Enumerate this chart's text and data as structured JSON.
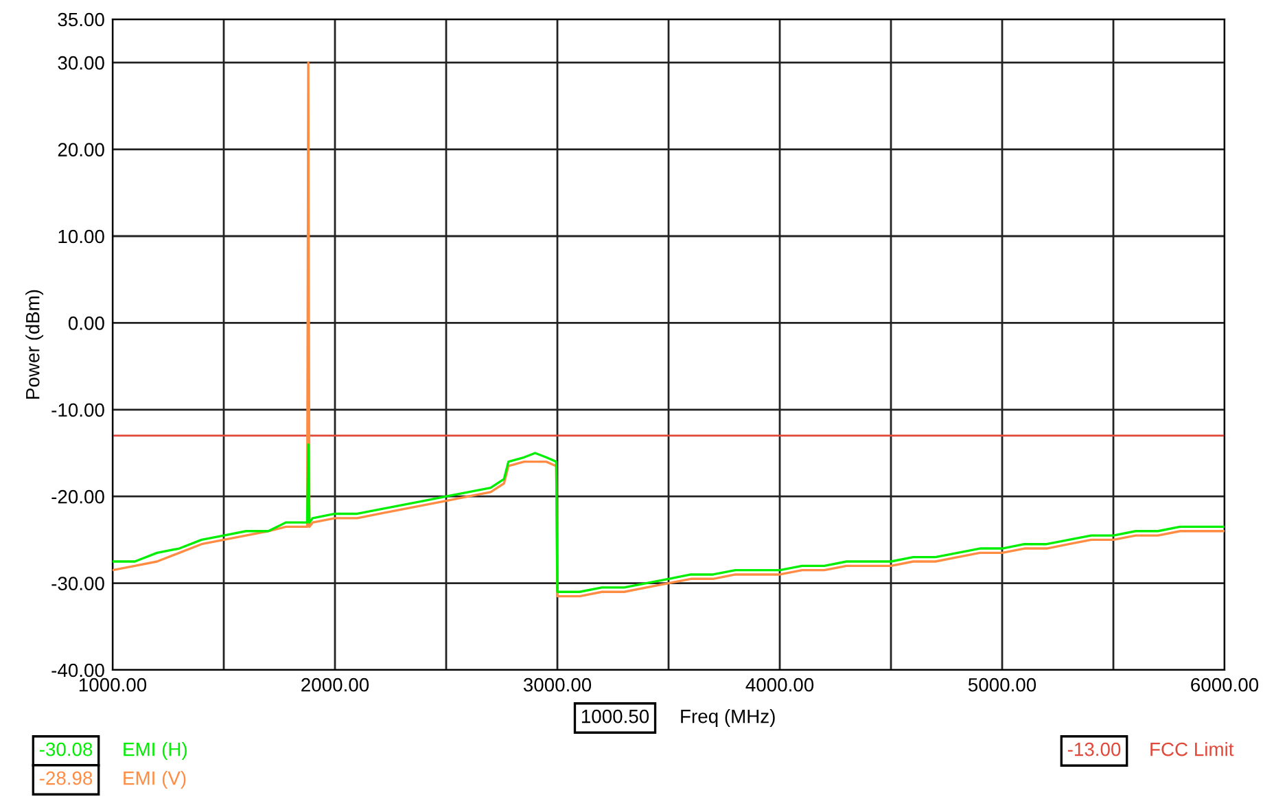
{
  "chart_data": {
    "type": "line",
    "xlabel": "Freq (MHz)",
    "ylabel": "Power (dBm)",
    "xlim": [
      1000,
      6000
    ],
    "ylim": [
      -40,
      35
    ],
    "xticks": [
      {
        "value": 1000,
        "label": "1000.00"
      },
      {
        "value": 1500,
        "label": null
      },
      {
        "value": 2000,
        "label": "2000.00"
      },
      {
        "value": 2500,
        "label": null
      },
      {
        "value": 3000,
        "label": "3000.00"
      },
      {
        "value": 3500,
        "label": null
      },
      {
        "value": 4000,
        "label": "4000.00"
      },
      {
        "value": 4500,
        "label": null
      },
      {
        "value": 5000,
        "label": "5000.00"
      },
      {
        "value": 5500,
        "label": null
      },
      {
        "value": 6000,
        "label": "6000.00"
      }
    ],
    "yticks": [
      {
        "value": -40,
        "label": "-40.00"
      },
      {
        "value": -30,
        "label": "-30.00"
      },
      {
        "value": -20,
        "label": "-20.00"
      },
      {
        "value": -10,
        "label": "-10.00"
      },
      {
        "value": 0,
        "label": "0.00"
      },
      {
        "value": 10,
        "label": "10.00"
      },
      {
        "value": 20,
        "label": "20.00"
      },
      {
        "value": 30,
        "label": "30.00"
      },
      {
        "value": 35,
        "label": "35.00"
      }
    ],
    "grid": true,
    "legend": "bottom left",
    "marker": "none",
    "line_style": "solid",
    "series": [
      {
        "name": "EMI (H)",
        "color": "#00ee00",
        "x": [
          1000,
          1100,
          1200,
          1300,
          1400,
          1500,
          1600,
          1700,
          1780,
          1860,
          1875,
          1880,
          1885,
          1900,
          2000,
          2100,
          2200,
          2300,
          2400,
          2500,
          2600,
          2700,
          2760,
          2780,
          2850,
          2900,
          2950,
          2995,
          3000,
          3100,
          3200,
          3300,
          3400,
          3500,
          3600,
          3700,
          3800,
          3900,
          4000,
          4100,
          4200,
          4300,
          4400,
          4500,
          4600,
          4700,
          4800,
          4900,
          5000,
          5100,
          5200,
          5300,
          5400,
          5500,
          5600,
          5700,
          5800,
          5900,
          6000
        ],
        "values": [
          -27.5,
          -27.5,
          -26.5,
          -26,
          -25,
          -24.5,
          -24,
          -24,
          -23,
          -23,
          -23,
          -14,
          -23,
          -22.5,
          -22,
          -22,
          -21.5,
          -21,
          -20.5,
          -20,
          -19.5,
          -19,
          -18,
          -16,
          -15.5,
          -15,
          -15.5,
          -16,
          -31,
          -31,
          -30.5,
          -30.5,
          -30,
          -29.5,
          -29,
          -29,
          -28.5,
          -28.5,
          -28.5,
          -28,
          -28,
          -27.5,
          -27.5,
          -27.5,
          -27,
          -27,
          -26.5,
          -26,
          -26,
          -25.5,
          -25.5,
          -25,
          -24.5,
          -24.5,
          -24,
          -24,
          -23.5,
          -23.5,
          -23.5
        ]
      },
      {
        "name": "EMI (V)",
        "color": "#ff8c42",
        "x": [
          1000,
          1100,
          1200,
          1300,
          1400,
          1500,
          1600,
          1700,
          1780,
          1860,
          1875,
          1880,
          1885,
          1900,
          2000,
          2100,
          2200,
          2300,
          2400,
          2500,
          2600,
          2700,
          2760,
          2780,
          2850,
          2900,
          2950,
          2995,
          3000,
          3100,
          3200,
          3300,
          3400,
          3500,
          3600,
          3700,
          3800,
          3900,
          4000,
          4100,
          4200,
          4300,
          4400,
          4500,
          4600,
          4700,
          4800,
          4900,
          5000,
          5100,
          5200,
          5300,
          5400,
          5500,
          5600,
          5700,
          5800,
          5900,
          6000
        ],
        "values": [
          -28.5,
          -28,
          -27.5,
          -26.5,
          -25.5,
          -25,
          -24.5,
          -24,
          -23.5,
          -23.5,
          -23.5,
          30,
          -23.5,
          -23,
          -22.5,
          -22.5,
          -22,
          -21.5,
          -21,
          -20.5,
          -20,
          -19.5,
          -18.5,
          -16.5,
          -16,
          -16,
          -16,
          -16.5,
          -31.5,
          -31.5,
          -31,
          -31,
          -30.5,
          -30,
          -29.5,
          -29.5,
          -29,
          -29,
          -29,
          -28.5,
          -28.5,
          -28,
          -28,
          -28,
          -27.5,
          -27.5,
          -27,
          -26.5,
          -26.5,
          -26,
          -26,
          -25.5,
          -25,
          -25,
          -24.5,
          -24.5,
          -24,
          -24,
          -24
        ]
      }
    ],
    "ref_lines": [
      {
        "axis": "y",
        "value": -13,
        "label": "FCC Limit",
        "color": "#e0483a",
        "line_style": "solid"
      }
    ],
    "annotations": [
      "1000.50",
      "-30.08",
      "-28.98",
      "-13.00"
    ]
  }
}
